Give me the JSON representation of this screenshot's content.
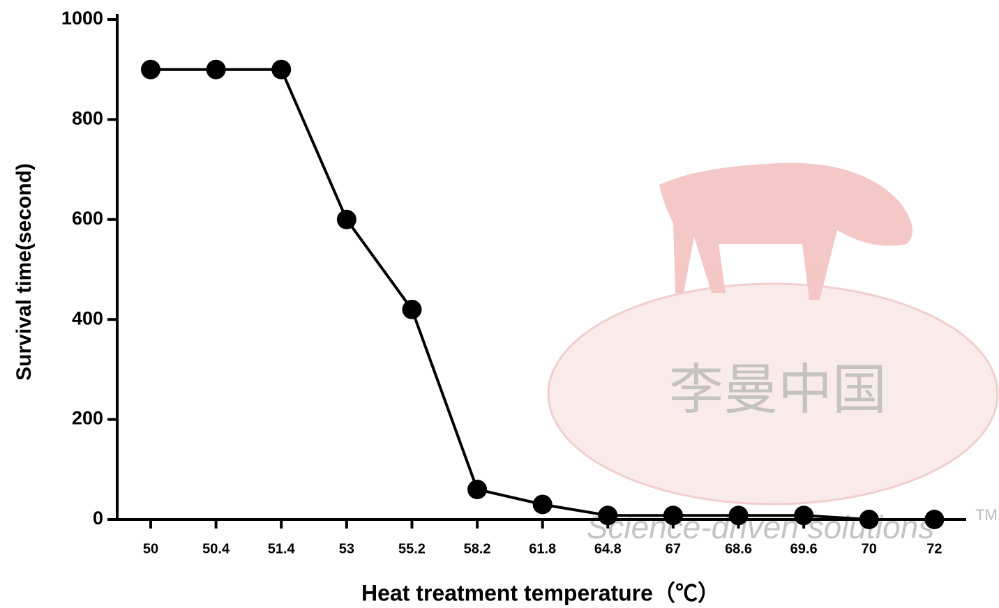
{
  "chart_data": {
    "type": "line",
    "x_label": "Heat treatment temperature（℃）",
    "y_label": "Survival time(second)",
    "categories": [
      "50",
      "50.4",
      "51.4",
      "53",
      "55.2",
      "58.2",
      "61.8",
      "64.8",
      "67",
      "68.6",
      "69.6",
      "70",
      "72"
    ],
    "values": [
      900,
      900,
      900,
      600,
      420,
      60,
      30,
      8,
      8,
      8,
      8,
      0,
      0
    ],
    "color": "#000000",
    "ylim": [
      0,
      1000
    ],
    "yticks": [
      0,
      200,
      400,
      600,
      800,
      1000
    ],
    "grid": false,
    "watermark": {
      "brand": "李曼中国",
      "slogan": "Science-driven solutions",
      "trademark": "TM"
    }
  }
}
